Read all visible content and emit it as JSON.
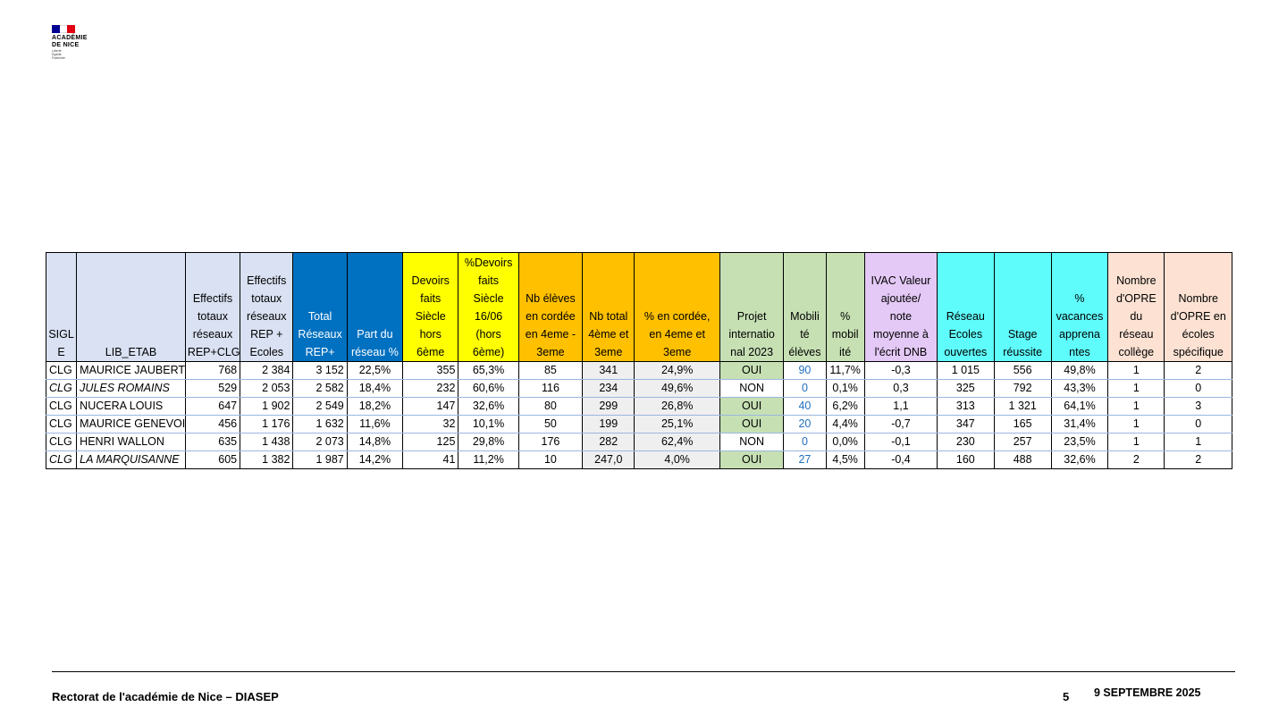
{
  "logo": {
    "line1": "ACADÉMIE",
    "line2": "DE NICE",
    "line3": "Liberté",
    "line4": "Égalité",
    "line5": "Fraternité",
    "flag_colors": [
      "#000091",
      "#ffffff",
      "#e1000f"
    ]
  },
  "table": {
    "headers": [
      "SIGL\nE",
      "LIB_ETAB",
      "Effectifs\ntotaux\nréseaux\nREP+CLG",
      "Effectifs\ntotaux\nréseaux\nREP +\nEcoles",
      "Total\nRéseaux\nREP+",
      "Part du\nréseau %",
      "Devoirs\nfaits\nSiècle\nhors\n6ème",
      "%Devoirs\nfaits\nSiècle\n16/06\n(hors\n6ème)",
      "Nb élèves\nen cordée\nen 4eme -\n3eme",
      "Nb total\n4ème et\n3eme",
      "% en cordée,\nen 4eme et\n3eme",
      "Projet\ninternatio\nnal 2023",
      "Mobili\nté\nélèves",
      "%\nmobil\nité",
      "IVAC Valeur\najoutée/\nnote\nmoyenne à\nl'écrit DNB",
      "Réseau\nEcoles\nouvertes",
      "Stage\nréussite",
      "%\nvacances\napprena\nntes",
      "Nombre\nd'OPRE\ndu\nréseau\ncollège",
      "Nombre\nd'OPRE en\nécoles\nspécifique"
    ],
    "header_colors": [
      "#d9e1f2",
      "#d9e1f2",
      "#d9e1f2",
      "#d9e1f2",
      "#0070c0",
      "#0070c0",
      "#ffff00",
      "#ffff00",
      "#ffc000",
      "#ffc000",
      "#ffc000",
      "#c6e0b4",
      "#c6e0b4",
      "#c6e0b4",
      "#e4c9f6",
      "#5ffcfc",
      "#5ffcfc",
      "#5ffcfc",
      "#fde2d3",
      "#fde2d3"
    ],
    "rows": [
      [
        "CLG",
        "MAURICE JAUBERT",
        "768",
        "2 384",
        "3 152",
        "22,5%",
        "355",
        "65,3%",
        "85",
        "341",
        "24,9%",
        "OUI",
        "90",
        "11,7%",
        "-0,3",
        "1 015",
        "556",
        "49,8%",
        "1",
        "2"
      ],
      [
        "CLG",
        "JULES ROMAINS",
        "529",
        "2 053",
        "2 582",
        "18,4%",
        "232",
        "60,6%",
        "116",
        "234",
        "49,6%",
        "NON",
        "0",
        "0,1%",
        "0,3",
        "325",
        "792",
        "43,3%",
        "1",
        "0"
      ],
      [
        "CLG",
        "NUCERA LOUIS",
        "647",
        "1 902",
        "2 549",
        "18,2%",
        "147",
        "32,6%",
        "80",
        "299",
        "26,8%",
        "OUI",
        "40",
        "6,2%",
        "1,1",
        "313",
        "1 321",
        "64,1%",
        "1",
        "3"
      ],
      [
        "CLG",
        "MAURICE GENEVOI",
        "456",
        "1 176",
        "1 632",
        "11,6%",
        "32",
        "10,1%",
        "50",
        "199",
        "25,1%",
        "OUI",
        "20",
        "4,4%",
        "-0,7",
        "347",
        "165",
        "31,4%",
        "1",
        "0"
      ],
      [
        "CLG",
        "HENRI WALLON",
        "635",
        "1 438",
        "2 073",
        "14,8%",
        "125",
        "29,8%",
        "176",
        "282",
        "62,4%",
        "NON",
        "0",
        "0,0%",
        "-0,1",
        "230",
        "257",
        "23,5%",
        "1",
        "1"
      ],
      [
        "CLG",
        "LA MARQUISANNE",
        "605",
        "1 382",
        "1 987",
        "14,2%",
        "41",
        "11,2%",
        "10",
        "247,0",
        "4,0%",
        "OUI",
        "27",
        "4,5%",
        "-0,4",
        "160",
        "488",
        "32,6%",
        "2",
        "2"
      ]
    ]
  },
  "footer": {
    "left": "Rectorat de l'académie de Nice –  DIASEP",
    "page": "5",
    "date": "9 SEPTEMBRE 2025"
  }
}
